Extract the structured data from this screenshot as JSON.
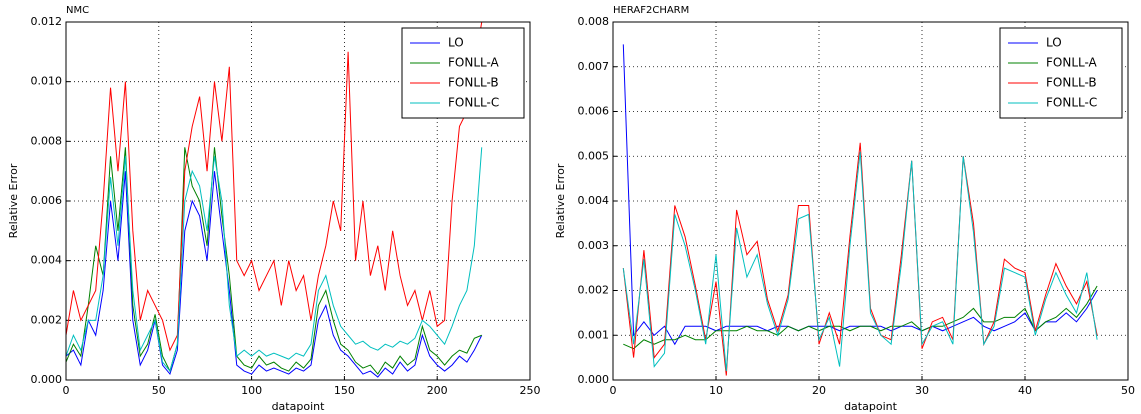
{
  "chart_data": [
    {
      "type": "line",
      "title": "NMC",
      "xlabel": "datapoint",
      "ylabel": "Relative Error",
      "grid": true,
      "legend": "upper right",
      "x": [
        0,
        4,
        8,
        12,
        16,
        20,
        24,
        28,
        32,
        36,
        40,
        44,
        48,
        52,
        56,
        60,
        64,
        68,
        72,
        76,
        80,
        84,
        88,
        92,
        96,
        100,
        104,
        108,
        112,
        116,
        120,
        124,
        128,
        132,
        136,
        140,
        144,
        148,
        152,
        156,
        160,
        164,
        168,
        172,
        176,
        180,
        184,
        188,
        192,
        196,
        200,
        204,
        208,
        212,
        216,
        220,
        224
      ],
      "xlim": [
        0,
        250
      ],
      "xticks": [
        0,
        50,
        100,
        150,
        200,
        250
      ],
      "ylim": [
        0,
        0.012
      ],
      "yticks": [
        {
          "value": 0,
          "label": "0.000"
        },
        {
          "value": 0.002,
          "label": "0.002"
        },
        {
          "value": 0.004,
          "label": "0.004"
        },
        {
          "value": 0.006,
          "label": "0.006"
        },
        {
          "value": 0.008,
          "label": "0.008"
        },
        {
          "value": 0.01,
          "label": "0.010"
        },
        {
          "value": 0.012,
          "label": "0.012"
        }
      ],
      "series": [
        {
          "name": "LO",
          "color": "#0000ff",
          "values": [
            0.0008,
            0.001,
            0.0005,
            0.002,
            0.0015,
            0.003,
            0.006,
            0.004,
            0.007,
            0.002,
            0.0005,
            0.001,
            0.002,
            0.0005,
            0.0002,
            0.001,
            0.005,
            0.006,
            0.0055,
            0.004,
            0.007,
            0.005,
            0.003,
            0.0005,
            0.0003,
            0.0002,
            0.0005,
            0.0003,
            0.0004,
            0.0003,
            0.0002,
            0.0004,
            0.0003,
            0.0005,
            0.002,
            0.0025,
            0.0015,
            0.001,
            0.0008,
            0.0005,
            0.0002,
            0.0003,
            0.0001,
            0.0004,
            0.0002,
            0.0006,
            0.0003,
            0.0005,
            0.0015,
            0.0008,
            0.0005,
            0.0003,
            0.0005,
            0.0008,
            0.0006,
            0.001,
            0.0015
          ]
        },
        {
          "name": "FONLL-A",
          "color": "#008000",
          "values": [
            0.0006,
            0.0012,
            0.0008,
            0.0025,
            0.0045,
            0.0035,
            0.0075,
            0.005,
            0.0078,
            0.0025,
            0.0008,
            0.0012,
            0.0022,
            0.0008,
            0.0003,
            0.0012,
            0.0078,
            0.0065,
            0.006,
            0.0045,
            0.0078,
            0.0055,
            0.0035,
            0.0008,
            0.0005,
            0.0004,
            0.0008,
            0.0005,
            0.0006,
            0.0004,
            0.0003,
            0.0006,
            0.0004,
            0.0007,
            0.0025,
            0.003,
            0.002,
            0.0012,
            0.001,
            0.0006,
            0.0004,
            0.0005,
            0.0002,
            0.0006,
            0.0004,
            0.0008,
            0.0005,
            0.0007,
            0.0018,
            0.001,
            0.0008,
            0.0005,
            0.0008,
            0.001,
            0.0009,
            0.0014,
            0.0015
          ]
        },
        {
          "name": "FONLL-B",
          "color": "#ff0000",
          "values": [
            0.0015,
            0.003,
            0.002,
            0.0025,
            0.003,
            0.006,
            0.0098,
            0.007,
            0.01,
            0.005,
            0.002,
            0.003,
            0.0025,
            0.002,
            0.001,
            0.0015,
            0.007,
            0.0085,
            0.0095,
            0.007,
            0.01,
            0.008,
            0.0105,
            0.004,
            0.0035,
            0.004,
            0.003,
            0.0035,
            0.004,
            0.0025,
            0.004,
            0.003,
            0.0035,
            0.002,
            0.0035,
            0.0045,
            0.006,
            0.005,
            0.011,
            0.004,
            0.006,
            0.0035,
            0.0045,
            0.003,
            0.005,
            0.0035,
            0.0025,
            0.003,
            0.002,
            0.003,
            0.0018,
            0.002,
            0.006,
            0.0085,
            0.009,
            0.0105,
            0.012
          ]
        },
        {
          "name": "FONLL-C",
          "color": "#00bfbf",
          "values": [
            0.0008,
            0.0015,
            0.001,
            0.002,
            0.002,
            0.0035,
            0.0068,
            0.0045,
            0.0075,
            0.003,
            0.001,
            0.0015,
            0.002,
            0.0006,
            0.0003,
            0.0012,
            0.006,
            0.007,
            0.0065,
            0.005,
            0.0075,
            0.006,
            0.0025,
            0.0008,
            0.001,
            0.0008,
            0.001,
            0.0008,
            0.0009,
            0.0008,
            0.0007,
            0.0009,
            0.0008,
            0.0012,
            0.003,
            0.0035,
            0.0025,
            0.0018,
            0.0015,
            0.0012,
            0.0013,
            0.0011,
            0.001,
            0.0012,
            0.0011,
            0.0013,
            0.0012,
            0.0014,
            0.002,
            0.0018,
            0.0015,
            0.0012,
            0.0018,
            0.0025,
            0.003,
            0.0045,
            0.0078
          ]
        }
      ]
    },
    {
      "type": "line",
      "title": "HERAF2CHARM",
      "xlabel": "datapoint",
      "ylabel": "Relative Error",
      "grid": true,
      "legend": "upper right",
      "x": [
        1,
        2,
        3,
        4,
        5,
        6,
        7,
        8,
        9,
        10,
        11,
        12,
        13,
        14,
        15,
        16,
        17,
        18,
        19,
        20,
        21,
        22,
        23,
        24,
        25,
        26,
        27,
        28,
        29,
        30,
        31,
        32,
        33,
        34,
        35,
        36,
        37,
        38,
        39,
        40,
        41,
        42,
        43,
        44,
        45,
        46,
        47
      ],
      "xlim": [
        0,
        50
      ],
      "xticks": [
        0,
        10,
        20,
        30,
        40,
        50
      ],
      "ylim": [
        0,
        0.008
      ],
      "yticks": [
        {
          "value": 0,
          "label": "0.000"
        },
        {
          "value": 0.001,
          "label": "0.001"
        },
        {
          "value": 0.002,
          "label": "0.002"
        },
        {
          "value": 0.003,
          "label": "0.003"
        },
        {
          "value": 0.004,
          "label": "0.004"
        },
        {
          "value": 0.005,
          "label": "0.005"
        },
        {
          "value": 0.006,
          "label": "0.006"
        },
        {
          "value": 0.007,
          "label": "0.007"
        },
        {
          "value": 0.008,
          "label": "0.008"
        }
      ],
      "series": [
        {
          "name": "LO",
          "color": "#0000ff",
          "values": [
            0.0075,
            0.001,
            0.0013,
            0.001,
            0.0012,
            0.0008,
            0.0012,
            0.0012,
            0.0012,
            0.0011,
            0.0012,
            0.0012,
            0.0012,
            0.0012,
            0.0011,
            0.0012,
            0.0012,
            0.0011,
            0.0012,
            0.0012,
            0.0012,
            0.0011,
            0.0012,
            0.0012,
            0.0012,
            0.0012,
            0.0011,
            0.0012,
            0.0012,
            0.0011,
            0.0012,
            0.0011,
            0.0012,
            0.0013,
            0.0014,
            0.0012,
            0.0011,
            0.0012,
            0.0013,
            0.0015,
            0.0011,
            0.0013,
            0.0013,
            0.0015,
            0.0013,
            0.0016,
            0.002
          ]
        },
        {
          "name": "FONLL-A",
          "color": "#008000",
          "values": [
            0.0008,
            0.0007,
            0.0009,
            0.0008,
            0.0009,
            0.0009,
            0.001,
            0.0009,
            0.0009,
            0.0011,
            0.0011,
            0.0011,
            0.0012,
            0.0011,
            0.0011,
            0.001,
            0.0012,
            0.0011,
            0.0012,
            0.0011,
            0.0012,
            0.0012,
            0.0011,
            0.0012,
            0.0012,
            0.0011,
            0.0012,
            0.0012,
            0.0013,
            0.0011,
            0.0012,
            0.0012,
            0.0013,
            0.0014,
            0.0016,
            0.0013,
            0.0013,
            0.0014,
            0.0014,
            0.0016,
            0.0011,
            0.0013,
            0.0014,
            0.0016,
            0.0014,
            0.0017,
            0.0021
          ]
        },
        {
          "name": "FONLL-B",
          "color": "#ff0000",
          "values": [
            0.0025,
            0.0005,
            0.0029,
            0.0005,
            0.0008,
            0.0039,
            0.0032,
            0.0021,
            0.0009,
            0.0022,
            0.0001,
            0.0038,
            0.0028,
            0.0031,
            0.0018,
            0.0011,
            0.0019,
            0.0039,
            0.0039,
            0.0008,
            0.0015,
            0.0008,
            0.0032,
            0.0053,
            0.0016,
            0.001,
            0.0009,
            0.0028,
            0.0049,
            0.0007,
            0.0013,
            0.0014,
            0.0009,
            0.005,
            0.0035,
            0.0008,
            0.0013,
            0.0027,
            0.0025,
            0.0024,
            0.0011,
            0.0019,
            0.0026,
            0.0021,
            0.0017,
            0.0022,
            0.001
          ]
        },
        {
          "name": "FONLL-C",
          "color": "#00bfbf",
          "values": [
            0.0025,
            0.0008,
            0.0027,
            0.0003,
            0.0006,
            0.0037,
            0.003,
            0.002,
            0.0008,
            0.0028,
            0.0002,
            0.0034,
            0.0023,
            0.0028,
            0.0017,
            0.001,
            0.0018,
            0.0036,
            0.0037,
            0.0009,
            0.0014,
            0.0003,
            0.003,
            0.0051,
            0.0015,
            0.001,
            0.0008,
            0.0026,
            0.0049,
            0.0008,
            0.0012,
            0.0013,
            0.0008,
            0.005,
            0.0033,
            0.0008,
            0.0012,
            0.0025,
            0.0024,
            0.0023,
            0.001,
            0.0018,
            0.0024,
            0.0019,
            0.0015,
            0.0024,
            0.0009
          ]
        }
      ]
    }
  ]
}
